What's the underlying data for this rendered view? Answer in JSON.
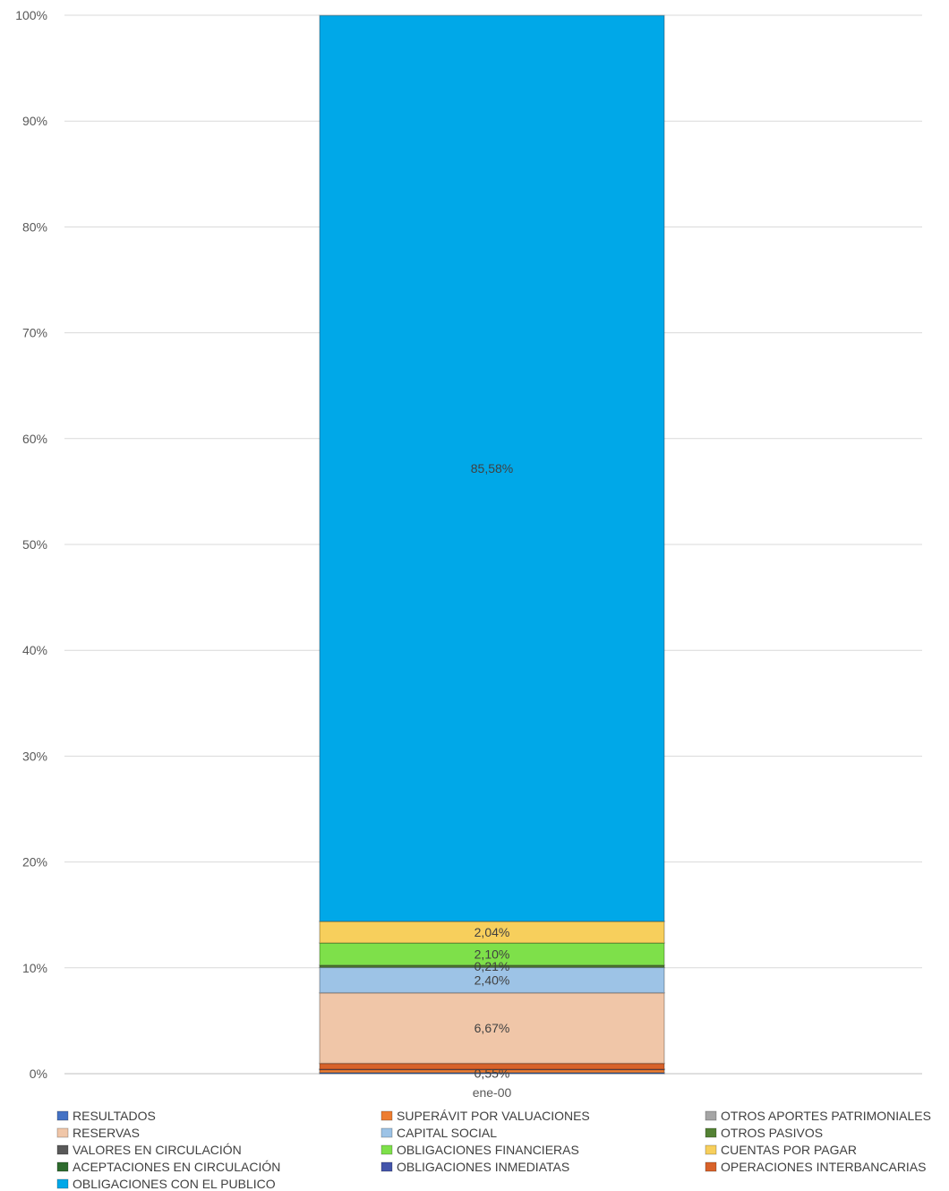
{
  "chart_data": {
    "type": "bar",
    "stacked": true,
    "percent_stacked": true,
    "categories": [
      "ene-00"
    ],
    "title": "",
    "xlabel": "",
    "ylabel": "",
    "ylim": [
      0,
      100
    ],
    "y_ticks": [
      "0%",
      "10%",
      "20%",
      "30%",
      "40%",
      "50%",
      "60%",
      "70%",
      "80%",
      "90%",
      "100%"
    ],
    "grid": true,
    "legend_position": "bottom",
    "series": [
      {
        "name": "RESULTADOS",
        "values": [
          0.1
        ],
        "color": "#4472c4",
        "label": ""
      },
      {
        "name": "SUPERÁVIT POR VALUACIONES",
        "values": [
          0.3
        ],
        "color": "#ed7d31",
        "label": ""
      },
      {
        "name": "OTROS APORTES PATRIMONIALES",
        "values": [
          0.0
        ],
        "color": "#a5a5a5",
        "label": ""
      },
      {
        "name": "OBLIGACIONES INMEDIATAS",
        "values": [
          0.02
        ],
        "color": "#4455aa",
        "label": ""
      },
      {
        "name": "OPERACIONES INTERBANCARIAS",
        "values": [
          0.55
        ],
        "color": "#d8622a",
        "label": "0,55%"
      },
      {
        "name": "VALORES EN CIRCULACIÓN",
        "values": [
          0.0
        ],
        "color": "#595959",
        "label": ""
      },
      {
        "name": "ACEPTACIONES EN CIRCULACIÓN",
        "values": [
          0.0
        ],
        "color": "#2e6b2e",
        "label": ""
      },
      {
        "name": "RESERVAS",
        "values": [
          6.67
        ],
        "color": "#f0c6a8",
        "label": "6,67%"
      },
      {
        "name": "CAPITAL SOCIAL",
        "values": [
          2.4
        ],
        "color": "#9dc3e6",
        "label": "2,40%"
      },
      {
        "name": "OTROS PASIVOS",
        "values": [
          0.21
        ],
        "color": "#548235",
        "label": "0,21%"
      },
      {
        "name": "OBLIGACIONES FINANCIERAS",
        "values": [
          2.1
        ],
        "color": "#7ee04a",
        "label": "2,10%"
      },
      {
        "name": "CUENTAS POR PAGAR",
        "values": [
          2.04
        ],
        "color": "#f7cf5c",
        "label": "2,04%"
      },
      {
        "name": "OBLIGACIONES CON EL PUBLICO",
        "values": [
          85.58
        ],
        "color": "#00a8e8",
        "label": "85,58%"
      }
    ],
    "legend_order": [
      "RESULTADOS",
      "SUPERÁVIT POR VALUACIONES",
      "OTROS APORTES PATRIMONIALES",
      "RESERVAS",
      "CAPITAL SOCIAL",
      "OTROS PASIVOS",
      "VALORES EN CIRCULACIÓN",
      "OBLIGACIONES FINANCIERAS",
      "CUENTAS POR PAGAR",
      "ACEPTACIONES EN CIRCULACIÓN",
      "OBLIGACIONES INMEDIATAS",
      "OPERACIONES INTERBANCARIAS",
      "OBLIGACIONES CON EL PUBLICO"
    ]
  }
}
